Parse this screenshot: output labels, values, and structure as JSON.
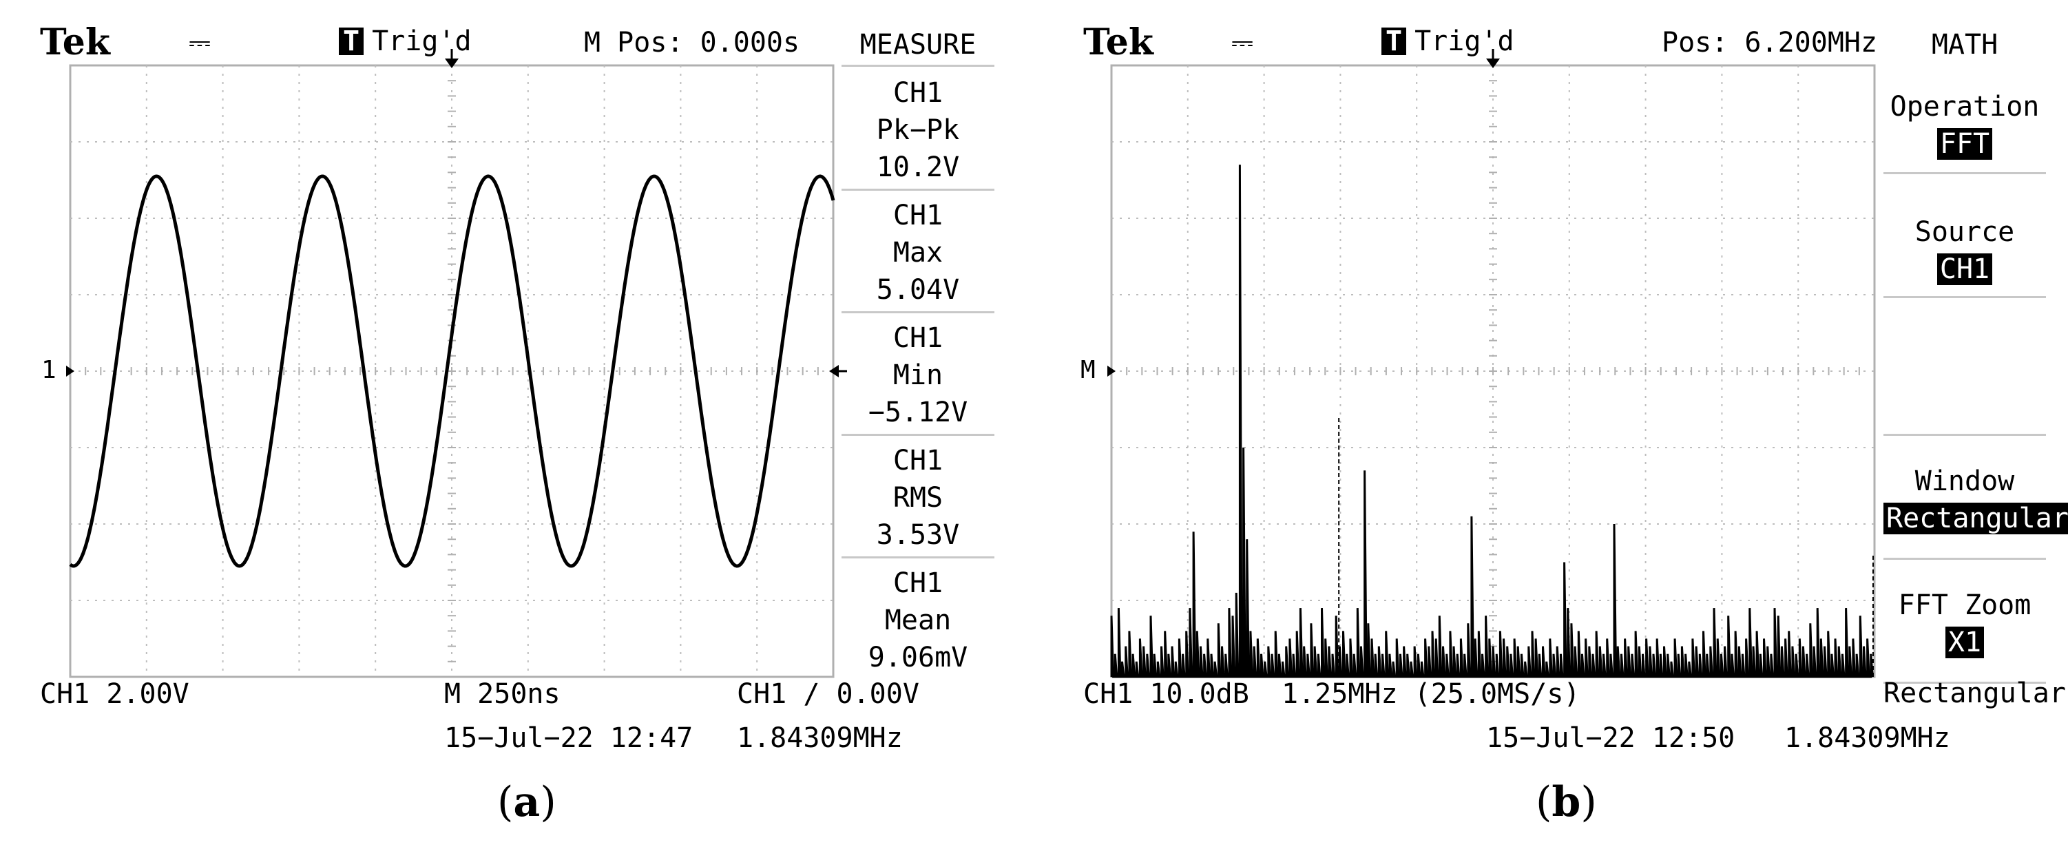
{
  "panel_a": {
    "caption_label": "a",
    "brand": "Tek",
    "trigger_status": "Trig'd",
    "trigger_badge": "T",
    "position_readout": "M Pos: 0.000s",
    "channel_marker": "1",
    "menu_title": "MEASURE",
    "measurements": [
      {
        "channel": "CH1",
        "name": "Pk−Pk",
        "value": "10.2V"
      },
      {
        "channel": "CH1",
        "name": "Max",
        "value": "5.04V"
      },
      {
        "channel": "CH1",
        "name": "Min",
        "value": "−5.12V"
      },
      {
        "channel": "CH1",
        "name": "RMS",
        "value": "3.53V"
      },
      {
        "channel": "CH1",
        "name": "Mean",
        "value": "9.06mV"
      }
    ],
    "ch_scale": "CH1  2.00V",
    "timebase": "M 250ns",
    "trigger_setting": "CH1 ∕ 0.00V",
    "datetime": "15−Jul−22 12:47",
    "frequency": "1.84309MHz",
    "waveform": {
      "type": "sine",
      "cycles_shown": 4.6,
      "amplitude_div": 2.55,
      "color": "#000000"
    }
  },
  "panel_b": {
    "caption_label": "b",
    "brand": "Tek",
    "trigger_status": "Trig'd",
    "trigger_badge": "T",
    "position_readout": "Pos: 6.200MHz",
    "channel_marker": "M",
    "menu_title": "MATH",
    "menu_items": [
      {
        "label": "Operation",
        "value": "FFT"
      },
      {
        "label": "Source",
        "value": "CH1"
      },
      {
        "label": "Window",
        "value": "Rectangular"
      },
      {
        "label": "FFT Zoom",
        "value": "X1"
      }
    ],
    "menu_footer": "Rectangular",
    "ch_scale": "CH1 10.0dB",
    "span": "1.25MHz (25.0MS/s)",
    "datetime": "15−Jul−22 12:50",
    "frequency": "1.84309MHz"
  },
  "chart_data": {
    "type": "line",
    "title": "",
    "xlabel": "",
    "ylabel": "",
    "ylim": [
      0,
      8
    ],
    "grid": true,
    "series": [
      {
        "values_div": [
          0.8,
          0.3,
          0.9,
          0.2,
          0.4,
          0.6,
          0.3,
          0.2,
          0.5,
          0.4,
          0.3,
          0.8,
          0.3,
          0.2,
          0.4,
          0.6,
          0.3,
          0.4,
          0.2,
          0.5,
          0.3,
          0.6,
          0.9,
          1.9,
          0.6,
          0.4,
          0.3,
          0.5,
          0.3,
          0.2,
          0.7,
          0.4,
          0.3,
          0.9,
          0.8,
          1.1,
          6.7,
          3.0,
          1.8,
          0.6,
          0.4,
          0.5,
          0.3,
          0.2,
          0.4,
          0.3,
          0.6,
          0.3,
          0.2,
          0.4,
          0.5,
          0.3,
          0.6,
          0.9,
          0.4,
          0.3,
          0.7,
          0.4,
          0.3,
          0.9,
          0.5,
          0.4,
          0.3,
          0.8,
          0.4,
          0.6,
          0.3,
          0.5,
          0.3,
          0.9,
          0.4,
          2.7,
          0.7,
          0.5,
          0.3,
          0.4,
          0.3,
          0.6,
          0.3,
          0.2,
          0.5,
          0.3,
          0.4,
          0.3,
          0.2,
          0.4,
          0.3,
          0.2,
          0.5,
          0.4,
          0.6,
          0.5,
          0.8,
          0.4,
          0.3,
          0.6,
          0.4,
          0.3,
          0.5,
          0.3,
          0.7,
          2.1,
          0.5,
          0.6,
          0.3,
          0.8,
          0.5,
          0.4,
          0.3,
          0.6,
          0.5,
          0.4,
          0.3,
          0.5,
          0.4,
          0.3,
          0.2,
          0.4,
          0.6,
          0.5,
          0.3,
          0.4,
          0.2,
          0.5,
          0.3,
          0.4,
          0.3,
          1.5,
          0.9,
          0.7,
          0.4,
          0.6,
          0.3,
          0.5,
          0.4,
          0.3,
          0.6,
          0.4,
          0.3,
          0.5,
          0.3,
          2.0,
          0.4,
          0.3,
          0.5,
          0.4,
          0.3,
          0.6,
          0.4,
          0.3,
          0.5,
          0.4,
          0.3,
          0.5,
          0.3,
          0.4,
          0.3,
          0.2,
          0.5,
          0.3,
          0.4,
          0.3,
          0.2,
          0.5,
          0.4,
          0.3,
          0.6,
          0.3,
          0.4,
          0.9,
          0.5,
          0.3,
          0.4,
          0.8,
          0.3,
          0.6,
          0.4,
          0.3,
          0.5,
          0.9,
          0.4,
          0.6,
          0.3,
          0.5,
          0.4,
          0.3,
          0.9,
          0.8,
          0.4,
          0.5,
          0.6,
          0.4,
          0.3,
          0.5,
          0.4,
          0.3,
          0.7,
          0.4,
          0.9,
          0.5,
          0.4,
          0.6,
          0.3,
          0.5,
          0.4,
          0.3,
          0.9,
          0.4,
          0.5,
          0.3,
          0.8,
          0.4,
          0.5,
          0.3
        ]
      }
    ]
  }
}
